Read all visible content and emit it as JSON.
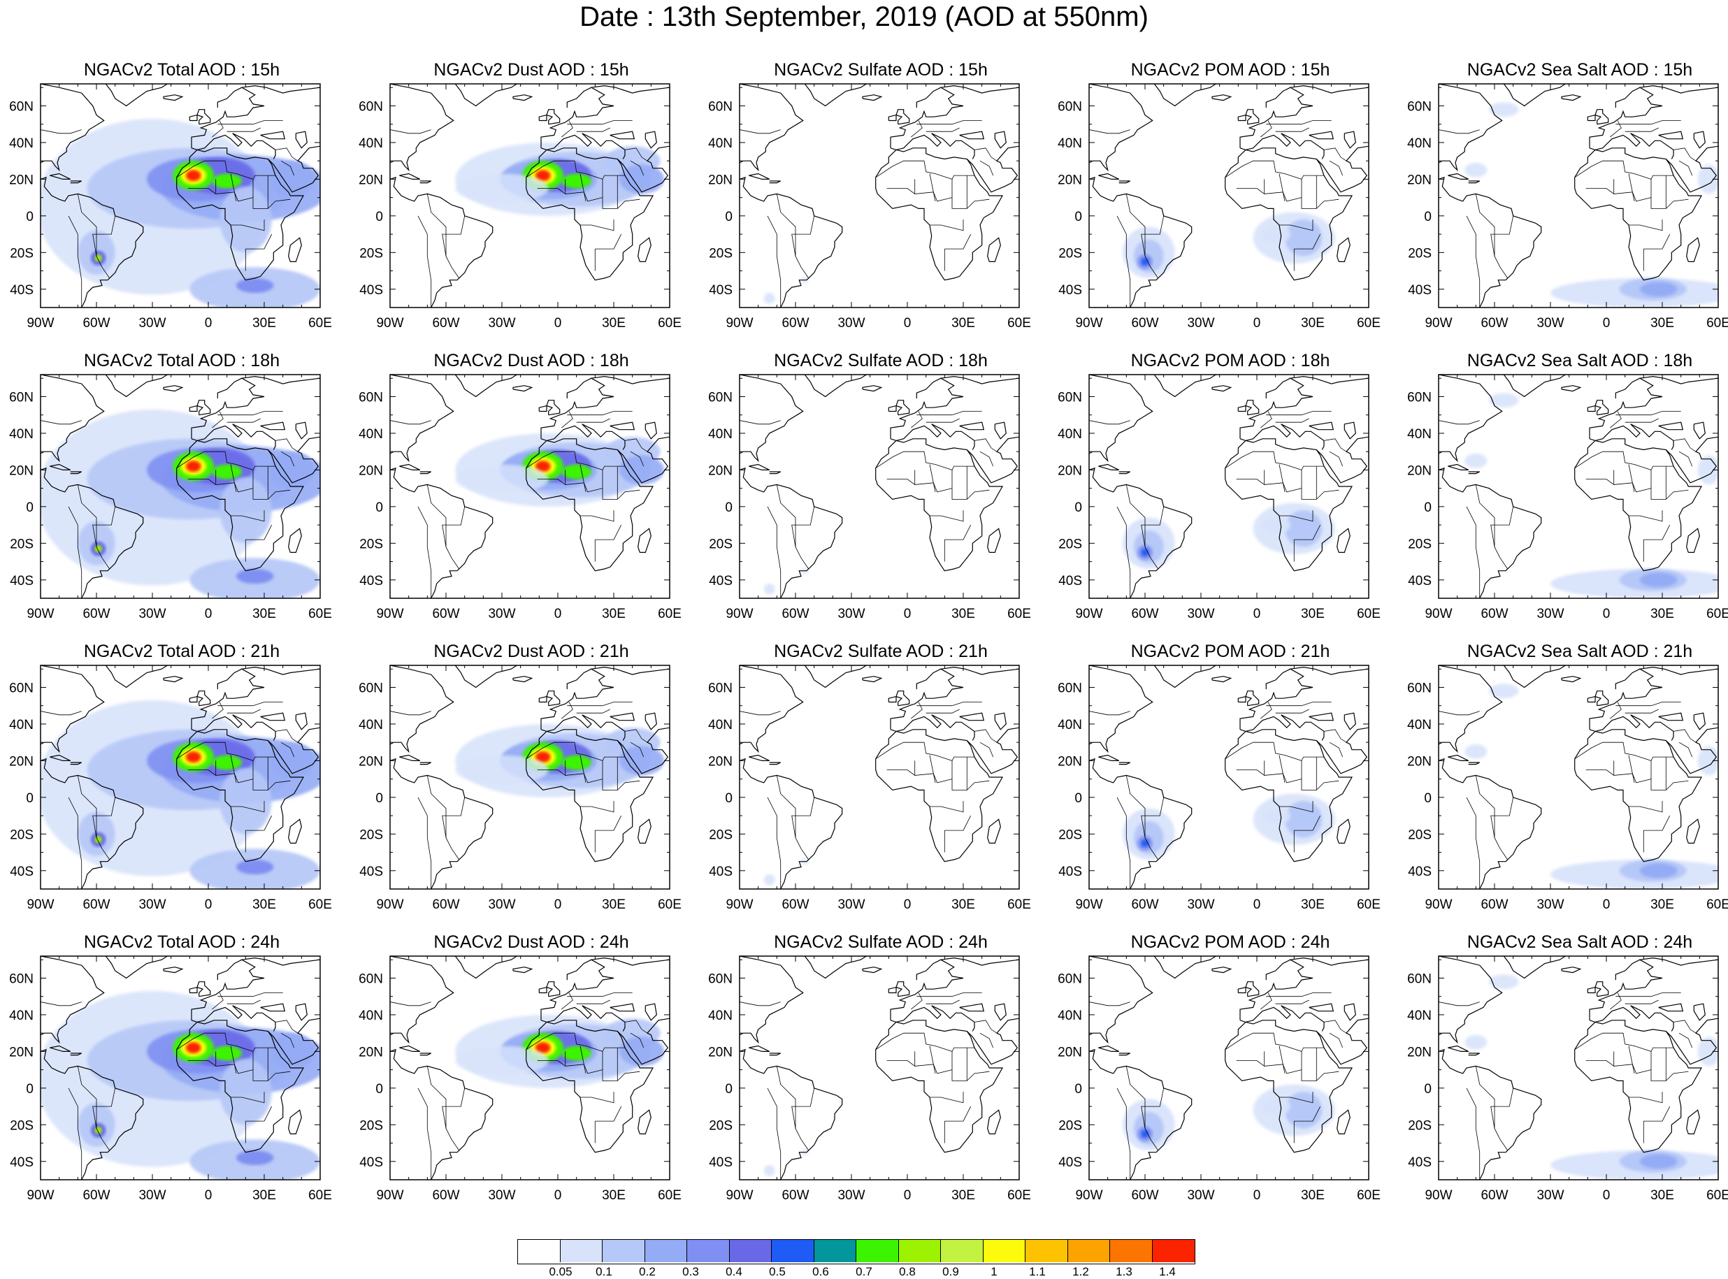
{
  "title": "Date : 13th September, 2019 (AOD at 550nm)",
  "panels": [
    {
      "title": "NGACv2 Total AOD : 15h",
      "field": "total"
    },
    {
      "title": "NGACv2 Dust AOD : 15h",
      "field": "dust"
    },
    {
      "title": "NGACv2 Sulfate AOD : 15h",
      "field": "sulfate"
    },
    {
      "title": "NGACv2 POM AOD : 15h",
      "field": "pom"
    },
    {
      "title": "NGACv2 Sea Salt AOD : 15h",
      "field": "seasalt"
    },
    {
      "title": "NGACv2 Total AOD : 18h",
      "field": "total"
    },
    {
      "title": "NGACv2 Dust AOD : 18h",
      "field": "dust"
    },
    {
      "title": "NGACv2 Sulfate AOD : 18h",
      "field": "sulfate"
    },
    {
      "title": "NGACv2 POM AOD : 18h",
      "field": "pom"
    },
    {
      "title": "NGACv2 Sea Salt AOD : 18h",
      "field": "seasalt"
    },
    {
      "title": "NGACv2 Total AOD : 21h",
      "field": "total"
    },
    {
      "title": "NGACv2 Dust AOD : 21h",
      "field": "dust"
    },
    {
      "title": "NGACv2 Sulfate AOD : 21h",
      "field": "sulfate"
    },
    {
      "title": "NGACv2 POM AOD : 21h",
      "field": "pom"
    },
    {
      "title": "NGACv2 Sea Salt AOD : 21h",
      "field": "seasalt"
    },
    {
      "title": "NGACv2 Total AOD : 24h",
      "field": "total"
    },
    {
      "title": "NGACv2 Dust AOD : 24h",
      "field": "dust"
    },
    {
      "title": "NGACv2 Sulfate AOD : 24h",
      "field": "sulfate"
    },
    {
      "title": "NGACv2 POM AOD : 24h",
      "field": "pom"
    },
    {
      "title": "NGACv2 Sea Salt  AOD : 24h",
      "field": "seasalt"
    }
  ],
  "axes": {
    "lon_labels": [
      "90W",
      "60W",
      "30W",
      "0",
      "30E",
      "60E"
    ],
    "lat_labels": [
      "60N",
      "40N",
      "20N",
      "0",
      "20S",
      "40S"
    ],
    "lon_range": [
      -90,
      60
    ],
    "lat_range": [
      -50,
      72
    ]
  },
  "colorbar": {
    "colors": [
      "#ffffff",
      "#d8e3fb",
      "#b6c8f7",
      "#94abf5",
      "#7f90f2",
      "#6969e8",
      "#1f5cf5",
      "#03969a",
      "#3cf400",
      "#9cf200",
      "#c4f241",
      "#fcfb0c",
      "#fdc300",
      "#fda300",
      "#fc7500",
      "#fb2300"
    ],
    "labels": [
      "0.05",
      "0.1",
      "0.2",
      "0.3",
      "0.4",
      "0.5",
      "0.6",
      "0.7",
      "0.8",
      "0.9",
      "1",
      "1.1",
      "1.2",
      "1.3",
      "1.4"
    ]
  }
}
